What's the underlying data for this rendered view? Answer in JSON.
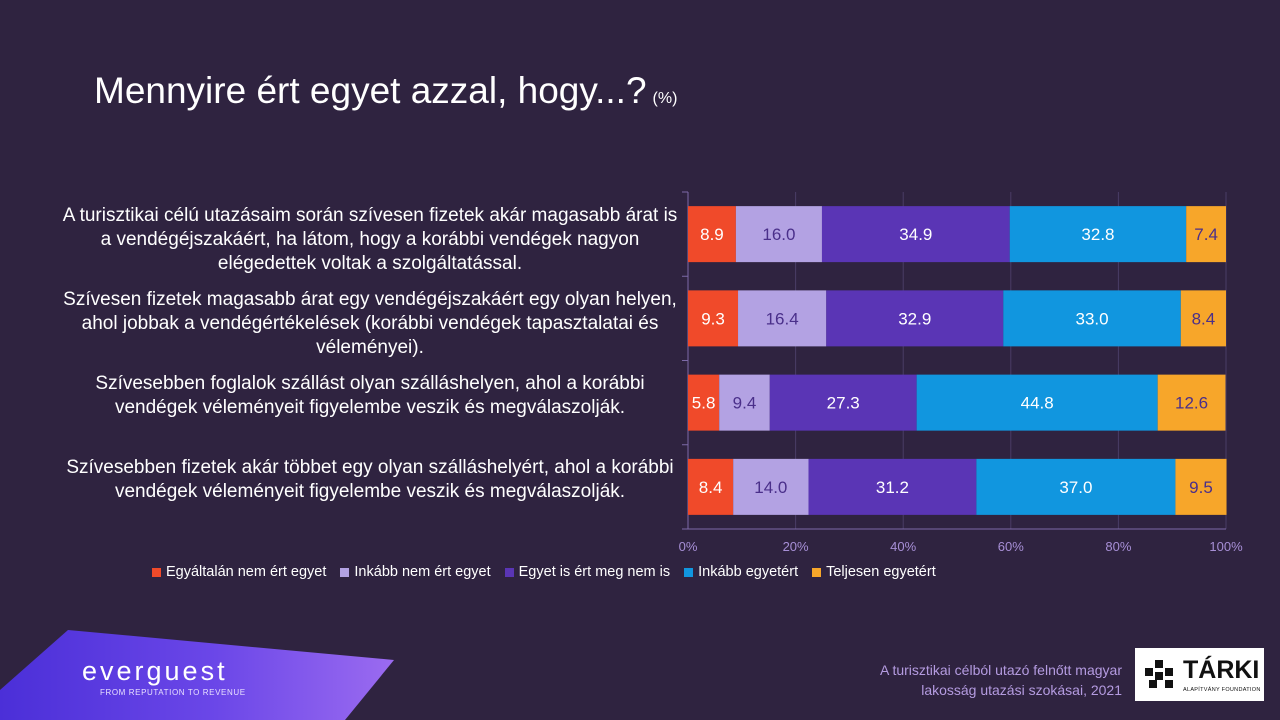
{
  "title": "Mennyire ért egyet azzal, hogy...?",
  "title_unit": "(%)",
  "chart_data": {
    "type": "bar",
    "orientation": "horizontal",
    "stacked": true,
    "categories": [
      "A turisztikai célú utazásaim során szívesen fizetek akár magasabb árat is a vendégéjszakáért, ha látom, hogy a korábbi vendégek nagyon elégedettek voltak a szolgáltatással.",
      "Szívesen fizetek magasabb árat egy vendégéjszakáért egy olyan helyen, ahol jobbak a vendégértékelések (korábbi vendégek tapasztalatai és véleményei).",
      "Szívesebben foglalok szállást olyan szálláshelyen, ahol a korábbi vendégek véleményeit figyelembe veszik és megválaszolják.",
      "Szívesebben fizetek akár többet egy olyan szálláshelyért, ahol a korábbi vendégek véleményeit figyelembe veszik és megválaszolják."
    ],
    "series": [
      {
        "name": "Egyáltalán nem ért egyet",
        "color": "#f04a2a",
        "values": [
          8.9,
          9.3,
          5.8,
          8.4
        ]
      },
      {
        "name": "Inkább nem ért egyet",
        "color": "#b3a2e3",
        "values": [
          16.0,
          16.4,
          9.4,
          14.0
        ]
      },
      {
        "name": "Egyet is ért meg nem is",
        "color": "#5a35b5",
        "values": [
          34.9,
          32.9,
          27.3,
          31.2
        ]
      },
      {
        "name": "Inkább egyetért",
        "color": "#1196df",
        "values": [
          32.8,
          33.0,
          44.8,
          37.0
        ]
      },
      {
        "name": "Teljesen egyetért",
        "color": "#f7a62a",
        "values": [
          7.4,
          8.4,
          12.6,
          9.5
        ]
      }
    ],
    "x_ticks": [
      "0%",
      "20%",
      "40%",
      "60%",
      "80%",
      "100%"
    ],
    "xlim": [
      0,
      100
    ],
    "legend_position": "bottom",
    "grid": true
  },
  "brand": {
    "name": "everguest",
    "tagline": "FROM REPUTATION TO REVENUE"
  },
  "source": {
    "line1": "A turisztikai célból utazó felnőtt magyar",
    "line2": "lakosság utazási szokásai, 2021"
  },
  "logo": {
    "name": "TÁRKI",
    "subtitle": "ALAPÍTVÁNY FOUNDATION"
  }
}
